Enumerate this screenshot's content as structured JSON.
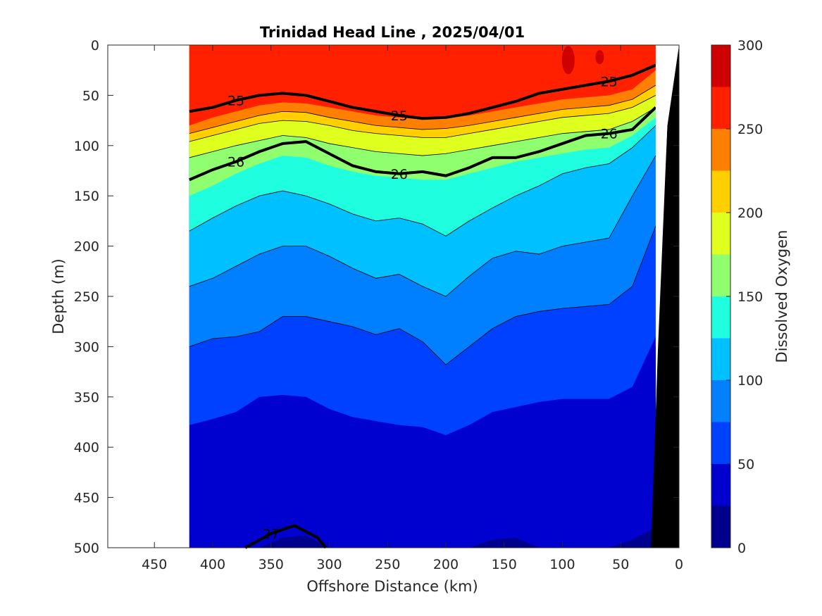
{
  "chart_data": {
    "type": "contour",
    "title": "Trinidad Head Line , 2025/04/01",
    "xlabel": "Offshore Distance (km)",
    "ylabel": "Depth (m)",
    "xlim": [
      490,
      0
    ],
    "ylim": [
      500,
      0
    ],
    "x_ticks": [
      "450",
      "400",
      "350",
      "300",
      "250",
      "200",
      "150",
      "100",
      "50",
      "0"
    ],
    "x_tick_values": [
      450,
      400,
      350,
      300,
      250,
      200,
      150,
      100,
      50,
      0
    ],
    "y_ticks": [
      "0",
      "50",
      "100",
      "150",
      "200",
      "250",
      "300",
      "350",
      "400",
      "450",
      "500"
    ],
    "y_tick_values": [
      0,
      50,
      100,
      150,
      200,
      250,
      300,
      350,
      400,
      450,
      500
    ],
    "data_extent_km": [
      420,
      20
    ],
    "colorbar": {
      "label": "Dissolved Oxygen",
      "ticks": [
        "0",
        "50",
        "100",
        "150",
        "200",
        "250",
        "300"
      ],
      "tick_values": [
        0,
        50,
        100,
        150,
        200,
        250,
        300
      ],
      "levels": [
        0,
        25,
        50,
        75,
        100,
        125,
        150,
        175,
        200,
        225,
        250,
        275,
        300
      ],
      "colors": [
        "#00008F",
        "#0000CF",
        "#0040FF",
        "#0080FF",
        "#00C0FF",
        "#1FFFDF",
        "#8FFF6F",
        "#DFFF1F",
        "#FFCF00",
        "#FF8000",
        "#FF2000",
        "#CF0000"
      ]
    },
    "oxygen_levels_depth_profiles": {
      "x_km": [
        420,
        400,
        380,
        360,
        340,
        320,
        300,
        280,
        260,
        240,
        220,
        200,
        180,
        160,
        140,
        120,
        100,
        80,
        60,
        40,
        20
      ],
      "level_250": [
        80,
        72,
        66,
        60,
        57,
        58,
        62,
        66,
        70,
        72,
        74,
        73,
        70,
        66,
        62,
        58,
        54,
        52,
        50,
        44,
        25
      ],
      "level_225": [
        88,
        82,
        76,
        70,
        66,
        67,
        72,
        76,
        80,
        82,
        84,
        83,
        80,
        76,
        72,
        68,
        64,
        62,
        60,
        54,
        40
      ],
      "level_200": [
        96,
        90,
        84,
        78,
        75,
        76,
        80,
        85,
        88,
        90,
        92,
        92,
        88,
        84,
        80,
        76,
        72,
        70,
        68,
        62,
        50
      ],
      "level_175": [
        112,
        106,
        100,
        95,
        90,
        92,
        98,
        102,
        106,
        108,
        110,
        108,
        104,
        100,
        96,
        92,
        88,
        86,
        84,
        76,
        62
      ],
      "level_150": [
        150,
        140,
        128,
        118,
        110,
        112,
        120,
        126,
        130,
        132,
        134,
        134,
        128,
        122,
        116,
        112,
        108,
        104,
        102,
        90,
        72
      ],
      "level_125": [
        185,
        172,
        160,
        150,
        145,
        150,
        158,
        168,
        175,
        172,
        178,
        190,
        175,
        162,
        150,
        140,
        128,
        122,
        118,
        102,
        80
      ],
      "level_100": [
        240,
        232,
        220,
        208,
        200,
        200,
        210,
        222,
        232,
        228,
        240,
        250,
        230,
        212,
        205,
        208,
        200,
        196,
        192,
        150,
        110
      ],
      "level_75": [
        300,
        292,
        290,
        285,
        270,
        270,
        275,
        280,
        288,
        282,
        295,
        318,
        300,
        282,
        270,
        265,
        262,
        260,
        258,
        240,
        180
      ],
      "level_50": [
        378,
        372,
        365,
        350,
        348,
        350,
        362,
        370,
        374,
        378,
        380,
        388,
        378,
        365,
        360,
        355,
        352,
        352,
        352,
        340,
        290
      ],
      "level_25": [
        500,
        500,
        500,
        500,
        490,
        488,
        500,
        500,
        500,
        500,
        500,
        500,
        500,
        492,
        490,
        500,
        500,
        500,
        500,
        492,
        480
      ]
    },
    "density_contours": [
      {
        "label": "25",
        "x_km": [
          420,
          400,
          380,
          360,
          340,
          320,
          300,
          280,
          260,
          240,
          220,
          200,
          180,
          160,
          140,
          120,
          100,
          80,
          60,
          40,
          20
        ],
        "depth": [
          66,
          62,
          55,
          50,
          48,
          50,
          56,
          62,
          66,
          70,
          73,
          72,
          68,
          62,
          56,
          48,
          44,
          40,
          36,
          30,
          20
        ]
      },
      {
        "label": "26",
        "x_km": [
          420,
          400,
          380,
          360,
          340,
          320,
          300,
          280,
          260,
          240,
          220,
          200,
          180,
          160,
          140,
          120,
          100,
          80,
          60,
          40,
          20
        ],
        "depth": [
          134,
          124,
          116,
          106,
          98,
          96,
          108,
          120,
          126,
          128,
          126,
          130,
          122,
          112,
          112,
          106,
          98,
          90,
          88,
          84,
          62
        ]
      },
      {
        "label": "27",
        "x_km": [
          372,
          350,
          330,
          310,
          303
        ],
        "depth": [
          500,
          486,
          478,
          490,
          500
        ]
      }
    ]
  }
}
